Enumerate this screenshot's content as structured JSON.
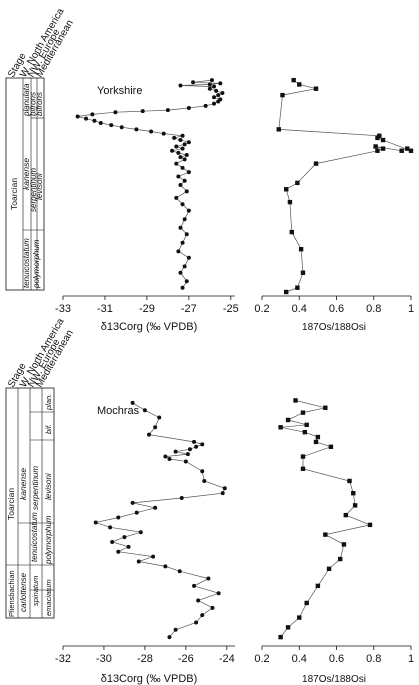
{
  "chart_data": [
    {
      "type": "scatter",
      "panel": "Yorkshire δ13C",
      "title": "Yorkshire",
      "xlabel": "δ13Corg (‰ VPDB)",
      "xticks": [
        -33,
        -31,
        -29,
        -27,
        -25
      ],
      "xlim": [
        -33,
        -24.8
      ],
      "ylim": [
        0,
        1
      ],
      "marker": "circle",
      "series": [
        {
          "x": [
            -27.3,
            -27.1,
            -27.4,
            -27.2,
            -27.0,
            -27.5,
            -27.3,
            -27.1,
            -27.4,
            -27.2,
            -27.0,
            -27.3,
            -27.6,
            -27.1,
            -27.4,
            -27.2,
            -27.5,
            -27.0,
            -27.3,
            -27.6,
            -27.2,
            -27.4,
            -27.1,
            -27.5,
            -27.8,
            -27.3,
            -27.6,
            -27.2,
            -27.0,
            -27.4,
            -27.7,
            -27.3,
            -28.2,
            -28.8,
            -29.5,
            -30.2,
            -30.7,
            -31.2,
            -31.5,
            -31.9,
            -32.3,
            -31.6,
            -30.5,
            -29.2,
            -28.0,
            -27.0,
            -26.2,
            -25.8,
            -25.6,
            -25.5,
            -25.8,
            -25.6,
            -25.4,
            -25.7,
            -26.0,
            -25.8,
            -27.4,
            -26.0,
            -25.5,
            -26.8,
            -25.9
          ],
          "y": [
            0.02,
            0.05,
            0.09,
            0.12,
            0.16,
            0.19,
            0.23,
            0.27,
            0.3,
            0.34,
            0.38,
            0.41,
            0.44,
            0.47,
            0.5,
            0.52,
            0.54,
            0.56,
            0.58,
            0.6,
            0.62,
            0.63,
            0.64,
            0.65,
            0.66,
            0.67,
            0.68,
            0.69,
            0.7,
            0.71,
            0.72,
            0.73,
            0.74,
            0.75,
            0.76,
            0.77,
            0.78,
            0.79,
            0.8,
            0.81,
            0.82,
            0.83,
            0.84,
            0.845,
            0.85,
            0.86,
            0.87,
            0.88,
            0.89,
            0.9,
            0.91,
            0.92,
            0.93,
            0.94,
            0.95,
            0.96,
            0.965,
            0.97,
            0.975,
            0.98,
            0.99
          ]
        }
      ]
    },
    {
      "type": "line",
      "panel": "Yorkshire Os",
      "xlabel": "187Os/188Osi",
      "xticks": [
        0.2,
        0.4,
        0.6,
        0.8,
        1.0
      ],
      "xlim": [
        0.2,
        1.0
      ],
      "ylim": [
        0,
        1
      ],
      "marker": "square",
      "series": [
        {
          "x": [
            0.33,
            0.39,
            0.42,
            0.41,
            0.36,
            0.35,
            0.33,
            0.39,
            0.49,
            0.82,
            0.85,
            0.81,
            0.95,
            0.98,
            1.0,
            0.85,
            0.82,
            0.83,
            0.29,
            0.31,
            0.49,
            0.4,
            0.37
          ],
          "y": [
            0.0,
            0.02,
            0.09,
            0.2,
            0.28,
            0.42,
            0.48,
            0.51,
            0.6,
            0.66,
            0.67,
            0.68,
            0.66,
            0.67,
            0.66,
            0.71,
            0.72,
            0.73,
            0.76,
            0.92,
            0.95,
            0.97,
            0.99
          ]
        }
      ]
    },
    {
      "type": "scatter",
      "panel": "Mochras δ13C",
      "title": "Mochras",
      "xlabel": "δ13Corg (‰ VPDB)",
      "xticks": [
        -32,
        -30,
        -28,
        -26,
        -24
      ],
      "xlim": [
        -32,
        -23.6
      ],
      "ylim": [
        0,
        1
      ],
      "marker": "circle",
      "series": [
        {
          "x": [
            -26.8,
            -26.5,
            -25.5,
            -25.2,
            -24.7,
            -25.4,
            -24.4,
            -25.6,
            -24.9,
            -26.3,
            -27.0,
            -28.3,
            -27.6,
            -29.3,
            -28.8,
            -29.6,
            -29.0,
            -28.2,
            -29.7,
            -30.4,
            -29.3,
            -28.4,
            -27.5,
            -28.6,
            -26.2,
            -24.2,
            -24.1,
            -25.1,
            -25.2,
            -26.0,
            -26.8,
            -27.0,
            -25.9,
            -26.5,
            -25.8,
            -25.5,
            -25.2,
            -25.6,
            -27.8,
            -27.5,
            -27.3,
            -28.0,
            -28.6
          ],
          "y": [
            0.02,
            0.05,
            0.08,
            0.11,
            0.14,
            0.17,
            0.2,
            0.23,
            0.26,
            0.29,
            0.31,
            0.33,
            0.35,
            0.37,
            0.39,
            0.41,
            0.43,
            0.45,
            0.47,
            0.49,
            0.51,
            0.53,
            0.55,
            0.57,
            0.59,
            0.61,
            0.63,
            0.66,
            0.7,
            0.74,
            0.75,
            0.76,
            0.77,
            0.78,
            0.79,
            0.8,
            0.81,
            0.82,
            0.85,
            0.88,
            0.92,
            0.95,
            0.98
          ]
        }
      ]
    },
    {
      "type": "line",
      "panel": "Mochras Os",
      "xlabel": "187Os/188Osi",
      "xticks": [
        0.2,
        0.4,
        0.6,
        0.8,
        1.0
      ],
      "xlim": [
        0.2,
        1.0
      ],
      "ylim": [
        0,
        1
      ],
      "marker": "square",
      "series": [
        {
          "x": [
            0.3,
            0.34,
            0.4,
            0.44,
            0.5,
            0.56,
            0.62,
            0.64,
            0.54,
            0.78,
            0.65,
            0.7,
            0.69,
            0.67,
            0.42,
            0.42,
            0.57,
            0.49,
            0.5,
            0.43,
            0.3,
            0.44,
            0.34,
            0.42,
            0.54,
            0.38
          ],
          "y": [
            0.02,
            0.06,
            0.1,
            0.16,
            0.23,
            0.3,
            0.34,
            0.4,
            0.44,
            0.48,
            0.52,
            0.56,
            0.61,
            0.66,
            0.71,
            0.76,
            0.8,
            0.82,
            0.84,
            0.86,
            0.88,
            0.89,
            0.91,
            0.94,
            0.96,
            0.99
          ]
        }
      ]
    }
  ],
  "strat_columns": {
    "headers": [
      "Stage",
      "W. North America",
      "NW. Europe",
      "Mediterranean"
    ],
    "yorkshire": {
      "stage": "Toarcian",
      "zones": [
        "kanense",
        "tenuicostatum"
      ],
      "subzones_top": [
        "planulata",
        "bifrons",
        "bifrons"
      ],
      "subzones": [
        "levisoni",
        "serpentinum",
        "polymorphum"
      ]
    },
    "mochras": {
      "stages": [
        "Toarcian",
        "Pliensbachian"
      ],
      "zones": [
        "kanense",
        "tenuicostatum",
        "carlottense"
      ],
      "labels": [
        "plan.",
        "bif.",
        "levisoni",
        "serpentinum",
        "polymorphum",
        "spinatum",
        "emaciatum"
      ]
    }
  }
}
